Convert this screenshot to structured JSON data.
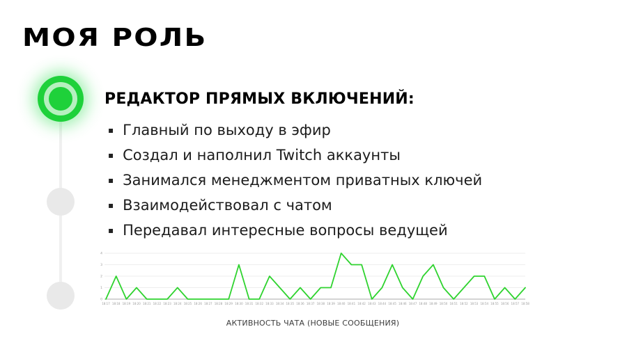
{
  "slide": {
    "title": "МОЯ РОЛЬ",
    "section": {
      "heading": "РЕДАКТОР ПРЯМЫХ ВКЛЮЧЕНИЙ:",
      "bullet_marker": "▪",
      "bullets": [
        "Главный по выходу в эфир",
        "Создал и наполнил Twitch аккаунты",
        "Занимался менеджментом приватных ключей",
        "Взаимодействовал с чатом",
        "Передавал интересные вопросы ведущей"
      ]
    },
    "chart_caption": "АКТИВНОСТЬ ЧАТА (НОВЫЕ СООБЩЕНИЯ)"
  },
  "timeline": {
    "steps": [
      {
        "state": "active"
      },
      {
        "state": "inactive"
      },
      {
        "state": "inactive"
      }
    ],
    "active_color": "#1ed13a",
    "inactive_color": "#e9e9e9"
  },
  "chart_data": {
    "type": "line",
    "title": "",
    "xlabel": "",
    "ylabel": "",
    "x": [
      "18:17",
      "18:18",
      "18:19",
      "18:20",
      "18:21",
      "18:22",
      "18:23",
      "18:24",
      "18:25",
      "18:26",
      "18:27",
      "18:28",
      "18:29",
      "18:30",
      "18:31",
      "18:32",
      "18:33",
      "18:34",
      "18:35",
      "18:36",
      "18:37",
      "18:38",
      "18:39",
      "18:40",
      "18:41",
      "18:42",
      "18:43",
      "18:44",
      "18:45",
      "18:46",
      "18:47",
      "18:48",
      "18:49",
      "18:50",
      "18:51",
      "18:52",
      "18:53",
      "18:54",
      "18:55",
      "18:56",
      "18:57",
      "18:58"
    ],
    "values": [
      0,
      2,
      0,
      1,
      0,
      0,
      0,
      1,
      0,
      0,
      0,
      0,
      0,
      3,
      0,
      0,
      2,
      1,
      0,
      1,
      0,
      1,
      1,
      4,
      3,
      3,
      0,
      1,
      3,
      1,
      0,
      2,
      3,
      1,
      0,
      1,
      2,
      2,
      0,
      1,
      0,
      1
    ],
    "ylim": [
      0,
      4
    ],
    "yticks": [
      0,
      1,
      2,
      3,
      4
    ],
    "grid": true,
    "legend": "none",
    "line_color": "#2fd32f",
    "grid_color": "#e7e7e7",
    "axis_color": "#a9a9a9",
    "tick_text_color": "#999999"
  }
}
